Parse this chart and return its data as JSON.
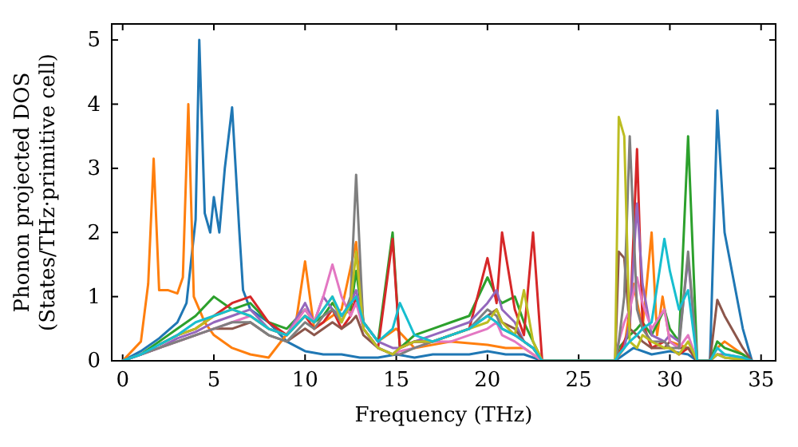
{
  "chart_data": {
    "type": "line",
    "xlabel": "Frequency (THz)",
    "ylabel": "Phonon projected DOS\n(States/THz·primitive cell)",
    "xlim": [
      -0.6,
      35.8
    ],
    "ylim": [
      0,
      5.25
    ],
    "xticks": [
      0,
      5,
      10,
      15,
      20,
      25,
      30,
      35
    ],
    "yticks": [
      0,
      1,
      2,
      3,
      4,
      5
    ],
    "grid": false,
    "line_style": "solid",
    "marker": "none",
    "x": [
      0,
      1,
      2,
      3,
      4,
      5,
      6,
      7,
      8,
      9,
      10,
      10.5,
      11,
      11.5,
      12,
      12.5,
      12.8,
      13.2,
      14,
      14.8,
      15.2,
      16,
      17,
      18,
      19,
      20,
      20.5,
      20.8,
      21.5,
      22,
      22.5,
      23,
      27,
      27.2,
      27.5,
      27.8,
      28.2,
      28.5,
      29,
      29.7,
      30,
      30.5,
      31,
      31.5,
      32.2,
      32.6,
      33,
      34,
      34.5
    ],
    "series": [
      {
        "color": "#1f77b4",
        "x": [
          0,
          1,
          2,
          3,
          3.5,
          4,
          4.2,
          4.5,
          4.8,
          5,
          5.3,
          5.6,
          6.0,
          6.4,
          6.6,
          7,
          7.5,
          8,
          9,
          10,
          11,
          12,
          13,
          14,
          15,
          16,
          17,
          18,
          19,
          20,
          21,
          22,
          23,
          27,
          28,
          29,
          30,
          31,
          31.5,
          32.2,
          32.6,
          33,
          34,
          34.5
        ],
        "values": [
          0,
          0.15,
          0.35,
          0.6,
          0.9,
          2.2,
          5.0,
          2.3,
          2.0,
          2.55,
          2.0,
          3.0,
          3.95,
          2.0,
          1.1,
          0.8,
          0.7,
          0.6,
          0.3,
          0.15,
          0.1,
          0.1,
          0.05,
          0.05,
          0.1,
          0.05,
          0.1,
          0.1,
          0.1,
          0.15,
          0.1,
          0.1,
          0,
          0,
          0.2,
          0.1,
          0.15,
          0.1,
          0,
          0,
          3.9,
          2.0,
          0.5,
          0
        ]
      },
      {
        "color": "#ff7f0e",
        "x": [
          0,
          1,
          1.4,
          1.7,
          2,
          2.5,
          3,
          3.3,
          3.6,
          3.9,
          4.5,
          5,
          6,
          7,
          8,
          9.5,
          10,
          10.5,
          12,
          12.8,
          13.2,
          14,
          15,
          16,
          18,
          20,
          21,
          22,
          23,
          27,
          27.5,
          28,
          28.5,
          29,
          29.3,
          29.6,
          30,
          31,
          31.5,
          32.2,
          32.6,
          33,
          34,
          34.5
        ],
        "values": [
          0,
          0.3,
          1.2,
          3.15,
          1.1,
          1.1,
          1.05,
          1.3,
          4.0,
          1.0,
          0.6,
          0.4,
          0.2,
          0.1,
          0.05,
          0.6,
          1.55,
          0.5,
          0.8,
          1.85,
          0.6,
          0.3,
          0.5,
          0.2,
          0.3,
          0.25,
          0.2,
          0.2,
          0,
          0,
          0.2,
          1.2,
          0.5,
          2.0,
          0.4,
          1.0,
          0.3,
          0.2,
          0,
          0,
          0.2,
          0.3,
          0.1,
          0
        ]
      },
      {
        "color": "#2ca02c",
        "values": [
          0,
          0.1,
          0.3,
          0.5,
          0.7,
          1.0,
          0.8,
          0.9,
          0.6,
          0.5,
          0.8,
          0.6,
          0.7,
          0.9,
          0.7,
          0.8,
          1.4,
          0.6,
          0.3,
          2.0,
          0.2,
          0.4,
          0.5,
          0.6,
          0.7,
          1.3,
          1.0,
          0.9,
          1.0,
          0.6,
          0.3,
          0,
          0,
          0.2,
          0.3,
          0.4,
          0.5,
          0.6,
          0.4,
          0.8,
          0.5,
          0.3,
          3.5,
          0,
          0,
          0.3,
          0.2,
          0.1,
          0
        ]
      },
      {
        "color": "#d62728",
        "values": [
          null,
          null,
          0.25,
          0.4,
          0.5,
          0.7,
          0.9,
          1.0,
          0.6,
          0.4,
          0.7,
          0.5,
          0.6,
          0.8,
          0.5,
          0.7,
          1.0,
          0.5,
          0.2,
          1.9,
          0.2,
          0.3,
          0.3,
          0.4,
          0.5,
          1.6,
          0.9,
          2.0,
          0.8,
          0.4,
          2.0,
          0,
          0,
          0.1,
          0.3,
          0.5,
          3.3,
          0.6,
          0.2,
          0.3,
          0.2,
          0.1,
          0.2,
          0,
          0,
          null,
          null,
          null,
          null
        ]
      },
      {
        "color": "#9467bd",
        "values": [
          0,
          0.1,
          0.2,
          0.35,
          0.45,
          0.6,
          0.7,
          0.8,
          0.5,
          0.4,
          0.9,
          0.6,
          1.0,
          0.8,
          0.7,
          0.9,
          1.1,
          0.6,
          0.3,
          0.2,
          0.2,
          0.3,
          0.4,
          0.5,
          0.6,
          0.9,
          1.1,
          0.8,
          0.6,
          0.3,
          0.2,
          0,
          0,
          0.1,
          0.2,
          0.6,
          2.45,
          1.2,
          0.4,
          0.3,
          0.4,
          0.3,
          1.6,
          0,
          0,
          0.1,
          0.1,
          0.05,
          0
        ]
      },
      {
        "color": "#8c564b",
        "values": [
          0,
          0.1,
          0.2,
          0.3,
          0.4,
          0.5,
          0.5,
          0.6,
          0.4,
          0.3,
          0.5,
          0.4,
          0.5,
          0.6,
          0.5,
          0.6,
          0.7,
          0.4,
          0.2,
          0.1,
          0.2,
          0.3,
          0.3,
          0.4,
          0.5,
          0.7,
          0.8,
          0.6,
          0.5,
          0.3,
          0.2,
          0,
          0,
          1.7,
          1.6,
          0.5,
          0.4,
          0.3,
          0.2,
          0.2,
          0.3,
          0.2,
          0.2,
          0,
          0,
          0.95,
          0.7,
          0.2,
          0
        ]
      },
      {
        "color": "#e377c2",
        "values": [
          0,
          0.1,
          0.2,
          0.3,
          0.4,
          0.5,
          0.6,
          0.7,
          0.5,
          0.4,
          0.8,
          0.6,
          1.0,
          1.5,
          1.0,
          0.7,
          0.9,
          0.5,
          0.2,
          0.1,
          0.15,
          0.2,
          0.3,
          0.3,
          0.4,
          0.5,
          0.6,
          0.4,
          0.3,
          0.2,
          0.1,
          0,
          0,
          0.3,
          0.6,
          0.8,
          1.3,
          0.9,
          0.5,
          0.8,
          0.3,
          0.2,
          0.4,
          0,
          0,
          null,
          null,
          null,
          null
        ]
      },
      {
        "color": "#7f7f7f",
        "values": [
          0,
          0.1,
          0.2,
          0.3,
          0.4,
          0.5,
          0.6,
          0.6,
          0.4,
          0.3,
          0.6,
          0.5,
          0.7,
          0.8,
          0.6,
          1.0,
          2.9,
          0.5,
          0.2,
          0.1,
          0.1,
          0.2,
          0.3,
          0.4,
          0.5,
          0.8,
          0.7,
          0.5,
          0.4,
          0.3,
          0.2,
          0,
          0,
          0.3,
          1.0,
          3.5,
          0.8,
          0.5,
          0.3,
          0.3,
          0.2,
          0.2,
          1.7,
          0,
          0,
          0.1,
          0.05,
          0.02,
          0
        ]
      },
      {
        "color": "#bcbd22",
        "values": [
          null,
          null,
          0.25,
          0.4,
          0.5,
          0.7,
          0.8,
          0.7,
          0.5,
          0.4,
          0.7,
          0.6,
          0.8,
          1.0,
          0.6,
          0.9,
          1.7,
          0.5,
          0.2,
          0.1,
          0.2,
          0.3,
          0.3,
          0.4,
          0.5,
          0.6,
          0.8,
          0.6,
          0.4,
          1.1,
          0.3,
          0,
          0,
          3.8,
          3.5,
          0.3,
          0.2,
          0.4,
          0.3,
          0.2,
          0.2,
          0.1,
          0.3,
          0,
          0,
          0.1,
          0.05,
          0.02,
          0
        ]
      },
      {
        "color": "#17becf",
        "values": [
          0,
          0.1,
          0.25,
          0.4,
          0.6,
          0.7,
          0.8,
          0.7,
          0.5,
          0.4,
          0.7,
          0.6,
          0.8,
          1.0,
          0.7,
          0.9,
          1.0,
          0.6,
          0.3,
          0.5,
          0.9,
          0.4,
          0.3,
          0.4,
          0.5,
          0.7,
          0.6,
          0.5,
          0.4,
          0.3,
          0.2,
          0,
          0,
          0.1,
          0.2,
          0.3,
          0.4,
          0.5,
          0.6,
          1.9,
          1.4,
          0.8,
          1.1,
          0,
          0,
          0.2,
          0.1,
          0.05,
          0
        ]
      }
    ]
  }
}
